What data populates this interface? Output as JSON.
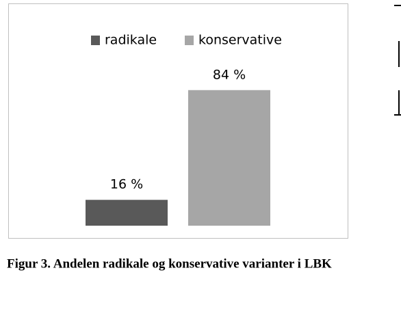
{
  "chart_data": {
    "type": "bar",
    "series": [
      {
        "name": "radikale",
        "color": "#595959",
        "values": [
          16
        ],
        "value_labels": [
          "16 %"
        ]
      },
      {
        "name": "konservative",
        "color": "#a6a6a6",
        "values": [
          84
        ],
        "value_labels": [
          "84 %"
        ]
      }
    ],
    "caption": "Figur 3. Andelen radikale og konservative varianter i LBK"
  }
}
